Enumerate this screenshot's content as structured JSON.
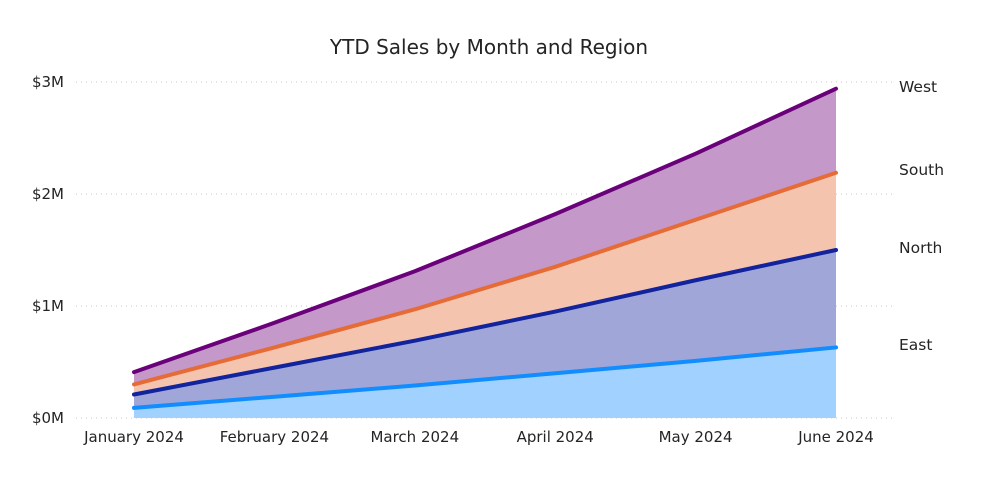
{
  "chart_data": {
    "type": "area",
    "stacked": true,
    "title": "YTD Sales by Month and Region",
    "xlabel": "",
    "ylabel": "",
    "categories": [
      "January 2024",
      "February 2024",
      "March 2024",
      "April 2024",
      "May 2024",
      "June 2024"
    ],
    "y_ticks": [
      {
        "value": 0,
        "label": "$0M"
      },
      {
        "value": 1000000,
        "label": "$1M"
      },
      {
        "value": 2000000,
        "label": "$2M"
      },
      {
        "value": 3000000,
        "label": "$3M"
      }
    ],
    "ylim": [
      0,
      3000000
    ],
    "grid": true,
    "legend_placement": "right-inline",
    "series": [
      {
        "name": "East",
        "values": [
          90000,
          190000,
          290000,
          400000,
          510000,
          630000
        ],
        "line_color": "#118DFF",
        "fill_color": "#A0D1FF"
      },
      {
        "name": "North",
        "values": [
          120000,
          260000,
          400000,
          550000,
          720000,
          870000
        ],
        "line_color": "#12239E",
        "fill_color": "#A0A7D8"
      },
      {
        "name": "South",
        "values": [
          90000,
          180000,
          280000,
          400000,
          540000,
          690000
        ],
        "line_color": "#E66C37",
        "fill_color": "#F5C4AF"
      },
      {
        "name": "West",
        "values": [
          110000,
          220000,
          340000,
          470000,
          590000,
          750000
        ],
        "line_color": "#6B007B",
        "fill_color": "#C499CA"
      }
    ]
  }
}
